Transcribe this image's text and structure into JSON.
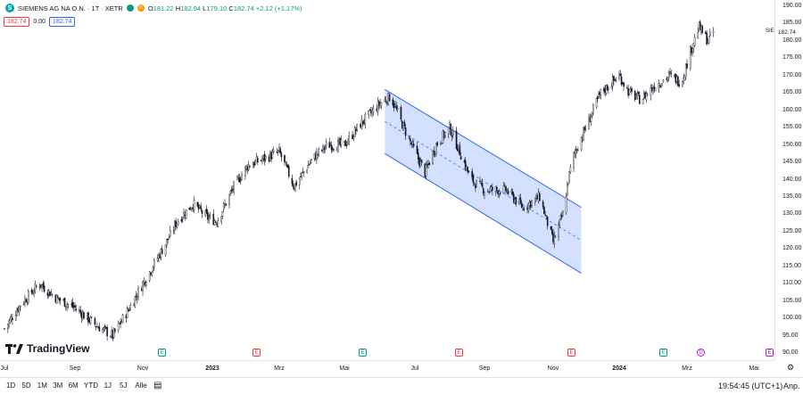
{
  "symbol": {
    "logo_letter": "S",
    "title": "SIEMENS AG NA O.N. · 1T · XETR",
    "badge_letter": "D",
    "open_label": "O",
    "open": "181.22",
    "high_label": "H",
    "high": "182.94",
    "low_label": "L",
    "low": "179.10",
    "close_label": "C",
    "close": "182.74",
    "change": "+2.12 (+1.17%)"
  },
  "price_boxes": {
    "bid": "182.74",
    "spread": "0.00",
    "ask": "182.74"
  },
  "watermark": "TradingView",
  "price_axis": {
    "ticks": [
      "190.00",
      "185.00",
      "180.00",
      "175.00",
      "170.00",
      "165.00",
      "160.00",
      "155.00",
      "150.00",
      "145.00",
      "140.00",
      "135.00",
      "130.00",
      "125.00",
      "120.00",
      "115.00",
      "110.00",
      "105.00",
      "100.00",
      "95.00",
      "90.00"
    ],
    "current_price": "182.74",
    "current_tag": "SIE"
  },
  "time_axis": {
    "labels": [
      "Jul",
      "Sep",
      "Nov",
      "2023",
      "Mrz",
      "Mai",
      "Jul",
      "Sep",
      "Nov",
      "2024",
      "Mrz",
      "Mai"
    ]
  },
  "events": [
    {
      "type": "E",
      "color": "#089981"
    },
    {
      "type": "E",
      "color": "#f23645"
    },
    {
      "type": "E",
      "color": "#089981"
    },
    {
      "type": "E",
      "color": "#f23645"
    },
    {
      "type": "E",
      "color": "#f23645"
    },
    {
      "type": "E",
      "color": "#089981"
    },
    {
      "type": "D",
      "color": "#9c27b0"
    },
    {
      "type": "E",
      "color": "#9c27b0"
    }
  ],
  "bottom_bar": {
    "timeframes": [
      "1D",
      "5D",
      "1M",
      "3M",
      "6M",
      "YTD",
      "1J",
      "5J",
      "Alle"
    ],
    "clock": "19:54:45 (UTC+1)",
    "adj": "Anp."
  },
  "colors": {
    "up": "#089981",
    "down": "#131722",
    "channel": "#2962ff",
    "channel_fill": "rgba(41,98,255,0.2)"
  },
  "chart_data": {
    "type": "candlestick",
    "ylim": [
      90,
      190
    ],
    "channel": {
      "upper_start": [
        "2023-06-05",
        166
      ],
      "upper_end": [
        "2023-11-27",
        132
      ],
      "lower_start": [
        "2023-06-05",
        147.5
      ],
      "lower_end": [
        "2023-11-27",
        113
      ]
    },
    "close_path": [
      [
        "2022-07-01",
        97
      ],
      [
        "2022-07-15",
        104
      ],
      [
        "2022-08-01",
        110
      ],
      [
        "2022-08-15",
        106
      ],
      [
        "2022-09-01",
        103
      ],
      [
        "2022-09-20",
        98
      ],
      [
        "2022-10-05",
        95
      ],
      [
        "2022-10-20",
        103
      ],
      [
        "2022-11-01",
        110
      ],
      [
        "2022-11-15",
        118
      ],
      [
        "2022-11-25",
        124
      ],
      [
        "2022-12-01",
        128
      ],
      [
        "2022-12-15",
        133
      ],
      [
        "2022-12-28",
        129
      ],
      [
        "2023-01-05",
        128
      ],
      [
        "2023-01-20",
        138
      ],
      [
        "2023-02-01",
        144
      ],
      [
        "2023-02-15",
        146
      ],
      [
        "2023-03-01",
        148
      ],
      [
        "2023-03-15",
        138
      ],
      [
        "2023-04-01",
        146
      ],
      [
        "2023-04-15",
        150
      ],
      [
        "2023-05-01",
        150
      ],
      [
        "2023-05-15",
        156
      ],
      [
        "2023-06-01",
        162
      ],
      [
        "2023-06-10",
        164
      ],
      [
        "2023-06-20",
        156
      ],
      [
        "2023-07-01",
        148
      ],
      [
        "2023-07-10",
        142
      ],
      [
        "2023-07-20",
        150
      ],
      [
        "2023-08-01",
        155
      ],
      [
        "2023-08-10",
        148
      ],
      [
        "2023-08-20",
        140
      ],
      [
        "2023-09-01",
        137
      ],
      [
        "2023-09-20",
        137
      ],
      [
        "2023-10-05",
        132
      ],
      [
        "2023-10-20",
        135
      ],
      [
        "2023-11-01",
        122
      ],
      [
        "2023-11-10",
        130
      ],
      [
        "2023-11-15",
        140
      ],
      [
        "2023-11-20",
        147
      ],
      [
        "2023-12-01",
        155
      ],
      [
        "2023-12-15",
        165
      ],
      [
        "2024-01-01",
        170
      ],
      [
        "2024-01-10",
        165
      ],
      [
        "2024-01-20",
        163
      ],
      [
        "2024-02-01",
        167
      ],
      [
        "2024-02-15",
        170
      ],
      [
        "2024-02-25",
        168
      ],
      [
        "2024-03-05",
        178
      ],
      [
        "2024-03-12",
        184
      ],
      [
        "2024-03-20",
        180
      ],
      [
        "2024-03-25",
        182.74
      ]
    ]
  }
}
